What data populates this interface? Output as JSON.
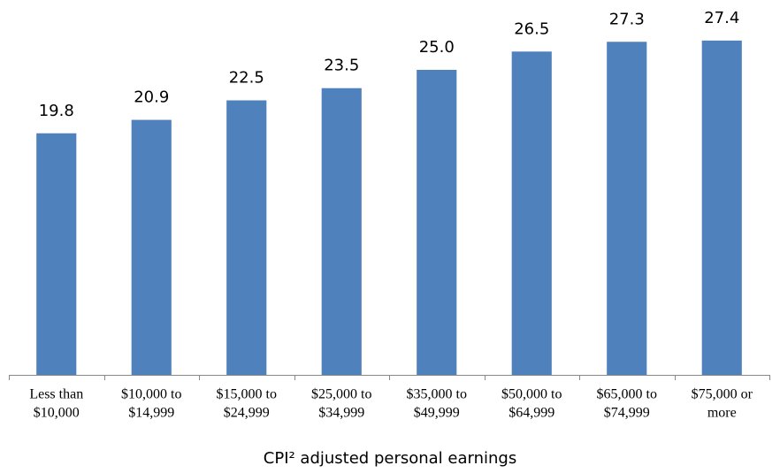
{
  "chart_data": {
    "type": "bar",
    "x_label": "CPI² adjusted personal earnings",
    "categories": [
      [
        "Less than",
        "$10,000"
      ],
      [
        "$10,000 to",
        "$14,999"
      ],
      [
        "$15,000 to",
        "$24,999"
      ],
      [
        "$25,000 to",
        "$34,999"
      ],
      [
        "$35,000 to",
        "$49,999"
      ],
      [
        "$50,000 to",
        "$64,999"
      ],
      [
        "$65,000 to",
        "$74,999"
      ],
      [
        "$75,000 or",
        "more"
      ]
    ],
    "values": [
      19.8,
      20.9,
      22.5,
      23.5,
      25.0,
      26.5,
      27.3,
      27.4
    ],
    "value_labels": [
      "19.8",
      "20.9",
      "22.5",
      "23.5",
      "25.0",
      "26.5",
      "27.3",
      "27.4"
    ],
    "color": "#4f81bd",
    "ylim": [
      0,
      30
    ],
    "grid": false
  }
}
